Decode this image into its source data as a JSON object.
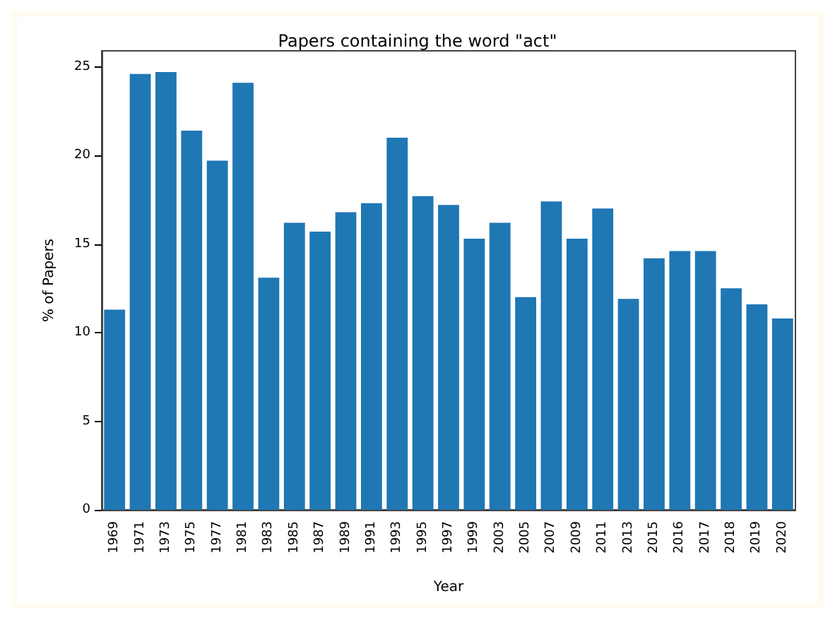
{
  "chart_data": {
    "type": "bar",
    "title": "Papers containing the word \"act\"",
    "xlabel": "Year",
    "ylabel": "% of Papers",
    "categories": [
      "1969",
      "1971",
      "1973",
      "1975",
      "1977",
      "1981",
      "1983",
      "1985",
      "1987",
      "1989",
      "1991",
      "1993",
      "1995",
      "1997",
      "1999",
      "2003",
      "2005",
      "2007",
      "2009",
      "2011",
      "2013",
      "2015",
      "2016",
      "2017",
      "2018",
      "2019",
      "2020"
    ],
    "values": [
      11.3,
      24.6,
      24.7,
      21.4,
      19.7,
      24.1,
      13.1,
      16.2,
      15.7,
      16.8,
      17.3,
      21.0,
      17.7,
      17.2,
      15.3,
      16.2,
      12.0,
      17.4,
      15.3,
      17.0,
      11.9,
      14.2,
      14.6,
      14.6,
      12.5,
      11.6,
      10.8
    ],
    "color": "#1f77b4",
    "ylim": [
      0,
      25.9
    ],
    "yticks": [
      0,
      5,
      10,
      15,
      20,
      25
    ],
    "grid": false
  }
}
